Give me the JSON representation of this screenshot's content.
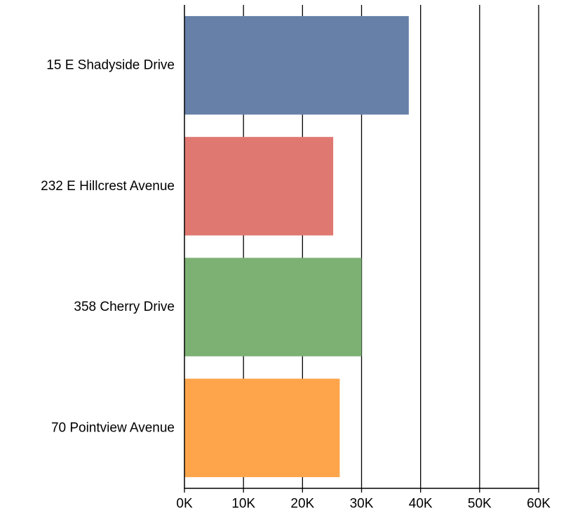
{
  "chart_data": {
    "type": "bar",
    "orientation": "horizontal",
    "title": "",
    "xlabel": "",
    "ylabel": "",
    "categories": [
      "15 E Shadyside Drive",
      "232 E Hillcrest Avenue",
      "358 Cherry Drive",
      "70 Pointview Avenue"
    ],
    "values": [
      38000,
      25200,
      30000,
      26300
    ],
    "colors": [
      "#6680a8",
      "#e07872",
      "#7db174",
      "#fea54c"
    ],
    "xlim": [
      0,
      60000
    ],
    "ticks": [
      0,
      10000,
      20000,
      30000,
      40000,
      50000,
      60000
    ],
    "tick_labels": [
      "0K",
      "10K",
      "20K",
      "30K",
      "40K",
      "50K",
      "60K"
    ],
    "grid": "vertical",
    "legend": "none"
  }
}
